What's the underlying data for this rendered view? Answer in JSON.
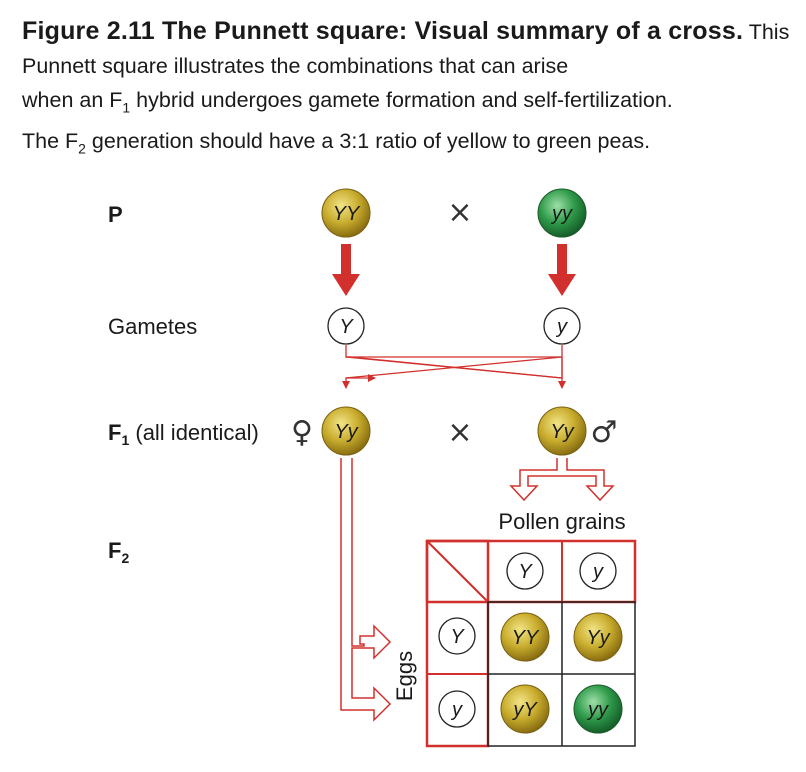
{
  "caption": {
    "title": "Figure 2.11 The Punnett square: Visual summary of a cross.",
    "line1": "This Punnett square illustrates the combinations that can arise",
    "line2_pre": "when an F",
    "line2_sub": "1",
    "line2_post": " hybrid undergoes gamete formation and self-fertilization.",
    "line3_pre": "The F",
    "line3_sub": "2",
    "line3_post": " generation should have a 3:1 ratio of yellow to green peas."
  },
  "rows": {
    "p_label": "P",
    "gametes_label": "Gametes",
    "f1_label_base": "F",
    "f1_label_sub": "1",
    "f1_label_rest": " (all identical)",
    "f2_label_base": "F",
    "f2_label_sub": "2"
  },
  "symbols": {
    "cross": "×",
    "female": "♀",
    "male": "♂"
  },
  "parents": {
    "left": "YY",
    "right": "yy"
  },
  "gametes": {
    "left": "Y",
    "right": "y"
  },
  "f1": {
    "female": "Yy",
    "male": "Yy"
  },
  "punnett": {
    "pollen_label": "Pollen grains",
    "eggs_label": "Eggs",
    "pollen": [
      "Y",
      "y"
    ],
    "eggs": [
      "Y",
      "y"
    ],
    "cells": [
      [
        "YY",
        "Yy"
      ],
      [
        "yY",
        "yy"
      ]
    ]
  },
  "colors": {
    "yellow_pea": "#c9ad2e",
    "green_pea": "#2f9a4a",
    "arrow_red": "#d2302c",
    "line_red": "#d2302c"
  }
}
